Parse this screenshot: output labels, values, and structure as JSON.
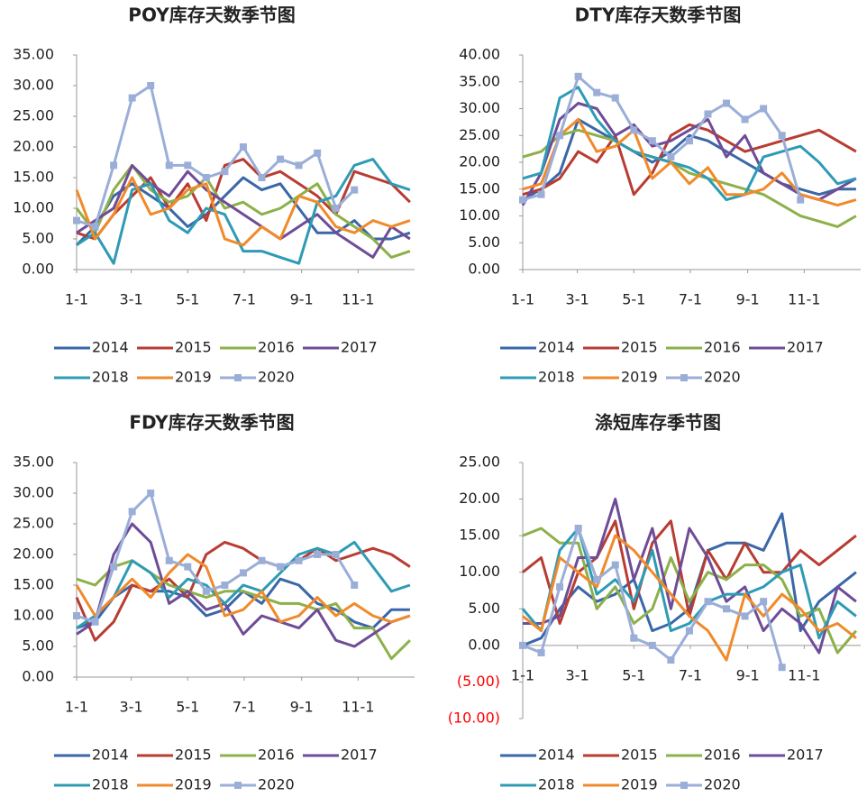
{
  "chart_data": [
    {
      "type": "line",
      "title": "POY库存天数季节图",
      "x": [
        0,
        20,
        40,
        60,
        80,
        100,
        120,
        140,
        160,
        180,
        200,
        220,
        240,
        260,
        280,
        300,
        320,
        340,
        360
      ],
      "xlim": [
        0,
        365
      ],
      "xticks": [
        {
          "value": 0,
          "label": "1-1"
        },
        {
          "value": 59,
          "label": "3-1"
        },
        {
          "value": 120,
          "label": "5-1"
        },
        {
          "value": 181,
          "label": "7-1"
        },
        {
          "value": 243,
          "label": "9-1"
        },
        {
          "value": 304,
          "label": "11-1"
        }
      ],
      "ylim": [
        0,
        35
      ],
      "yticks": [
        {
          "value": 0,
          "label": "0.00"
        },
        {
          "value": 5,
          "label": "5.00"
        },
        {
          "value": 10,
          "label": "10.00"
        },
        {
          "value": 15,
          "label": "15.00"
        },
        {
          "value": 20,
          "label": "20.00"
        },
        {
          "value": 25,
          "label": "25.00"
        },
        {
          "value": 30,
          "label": "30.00"
        },
        {
          "value": 35,
          "label": "35.00"
        }
      ],
      "series": [
        {
          "name": "2014",
          "color": "#3a67a8",
          "values": [
            4,
            7,
            12,
            14,
            12,
            10,
            7,
            9,
            12,
            15,
            13,
            14,
            10,
            6,
            6,
            8,
            5,
            5,
            6
          ]
        },
        {
          "name": "2015",
          "color": "#b83c32",
          "values": [
            6,
            5,
            9,
            12,
            15,
            10,
            14,
            8,
            17,
            18,
            15,
            16,
            14,
            12,
            9,
            16,
            15,
            14,
            11
          ]
        },
        {
          "name": "2016",
          "color": "#8db04a",
          "values": [
            10,
            6,
            13,
            17,
            13,
            11,
            12,
            15,
            10,
            11,
            9,
            10,
            12,
            14,
            9,
            7,
            5,
            2,
            3
          ]
        },
        {
          "name": "2017",
          "color": "#6f4c97",
          "values": [
            6,
            8,
            10,
            17,
            14,
            12,
            16,
            13,
            11,
            9,
            7,
            5,
            7,
            9,
            6,
            4,
            2,
            7,
            5
          ]
        },
        {
          "name": "2018",
          "color": "#2e9bb5",
          "values": [
            4,
            6,
            1,
            13,
            14,
            8,
            6,
            10,
            9,
            3,
            3,
            2,
            1,
            11,
            12,
            17,
            18,
            14,
            13
          ]
        },
        {
          "name": "2019",
          "color": "#f08a2a",
          "values": [
            13,
            5,
            9,
            15,
            9,
            10,
            13,
            14,
            5,
            4,
            7,
            5,
            12,
            11,
            7,
            6,
            8,
            7,
            8
          ]
        },
        {
          "name": "2020",
          "color": "#9aaed8",
          "marker": "square",
          "values": [
            8,
            7,
            17,
            28,
            30,
            17,
            17,
            15,
            16,
            20,
            15,
            18,
            17,
            19,
            10,
            13,
            null,
            null,
            null
          ]
        }
      ]
    },
    {
      "type": "line",
      "title": "DTY库存天数季节图",
      "x": [
        0,
        20,
        40,
        60,
        80,
        100,
        120,
        140,
        160,
        180,
        200,
        220,
        240,
        260,
        280,
        300,
        320,
        340,
        360
      ],
      "xlim": [
        0,
        365
      ],
      "xticks": [
        {
          "value": 0,
          "label": "1-1"
        },
        {
          "value": 59,
          "label": "3-1"
        },
        {
          "value": 120,
          "label": "5-1"
        },
        {
          "value": 181,
          "label": "7-1"
        },
        {
          "value": 243,
          "label": "9-1"
        },
        {
          "value": 304,
          "label": "11-1"
        }
      ],
      "ylim": [
        0,
        40
      ],
      "yticks": [
        {
          "value": 0,
          "label": "0.00"
        },
        {
          "value": 5,
          "label": "5.00"
        },
        {
          "value": 10,
          "label": "10.00"
        },
        {
          "value": 15,
          "label": "15.00"
        },
        {
          "value": 20,
          "label": "20.00"
        },
        {
          "value": 25,
          "label": "25.00"
        },
        {
          "value": 30,
          "label": "30.00"
        },
        {
          "value": 35,
          "label": "35.00"
        },
        {
          "value": 40,
          "label": "40.00"
        }
      ],
      "series": [
        {
          "name": "2014",
          "color": "#3a67a8",
          "values": [
            13,
            15,
            18,
            28,
            26,
            24,
            22,
            20,
            22,
            25,
            24,
            22,
            20,
            18,
            16,
            15,
            14,
            15,
            15
          ]
        },
        {
          "name": "2015",
          "color": "#b83c32",
          "values": [
            14,
            15,
            17,
            22,
            20,
            25,
            14,
            18,
            25,
            27,
            26,
            24,
            22,
            23,
            24,
            25,
            26,
            24,
            22
          ]
        },
        {
          "name": "2016",
          "color": "#8db04a",
          "values": [
            21,
            22,
            25,
            26,
            25,
            24,
            22,
            21,
            20,
            18,
            17,
            16,
            15,
            14,
            12,
            10,
            9,
            8,
            10
          ]
        },
        {
          "name": "2017",
          "color": "#6f4c97",
          "values": [
            12,
            18,
            28,
            31,
            30,
            25,
            27,
            23,
            24,
            26,
            28,
            21,
            25,
            18,
            16,
            14,
            13,
            15,
            17
          ]
        },
        {
          "name": "2018",
          "color": "#2e9bb5",
          "values": [
            17,
            18,
            32,
            34,
            28,
            24,
            22,
            21,
            20,
            19,
            17,
            13,
            14,
            21,
            22,
            23,
            20,
            16,
            17
          ]
        },
        {
          "name": "2019",
          "color": "#f08a2a",
          "values": [
            15,
            16,
            25,
            28,
            22,
            23,
            26,
            17,
            20,
            16,
            19,
            14,
            14,
            15,
            18,
            14,
            13,
            12,
            13
          ]
        },
        {
          "name": "2020",
          "color": "#9aaed8",
          "marker": "square",
          "values": [
            13,
            14,
            25,
            36,
            33,
            32,
            26,
            24,
            21,
            24,
            29,
            31,
            28,
            30,
            25,
            13,
            null,
            null,
            null
          ]
        }
      ]
    },
    {
      "type": "line",
      "title": "FDY库存天数季节图",
      "x": [
        0,
        20,
        40,
        60,
        80,
        100,
        120,
        140,
        160,
        180,
        200,
        220,
        240,
        260,
        280,
        300,
        320,
        340,
        360
      ],
      "xlim": [
        0,
        365
      ],
      "xticks": [
        {
          "value": 0,
          "label": "1-1"
        },
        {
          "value": 59,
          "label": "3-1"
        },
        {
          "value": 120,
          "label": "5-1"
        },
        {
          "value": 181,
          "label": "7-1"
        },
        {
          "value": 243,
          "label": "9-1"
        },
        {
          "value": 304,
          "label": "11-1"
        }
      ],
      "ylim": [
        0,
        35
      ],
      "yticks": [
        {
          "value": 0,
          "label": "0.00"
        },
        {
          "value": 5,
          "label": "5.00"
        },
        {
          "value": 10,
          "label": "10.00"
        },
        {
          "value": 15,
          "label": "15.00"
        },
        {
          "value": 20,
          "label": "20.00"
        },
        {
          "value": 25,
          "label": "25.00"
        },
        {
          "value": 30,
          "label": "30.00"
        },
        {
          "value": 35,
          "label": "35.00"
        }
      ],
      "series": [
        {
          "name": "2014",
          "color": "#3a67a8",
          "values": [
            8,
            9,
            13,
            15,
            14,
            14,
            13,
            10,
            11,
            14,
            12,
            16,
            15,
            12,
            11,
            9,
            8,
            11,
            11
          ]
        },
        {
          "name": "2015",
          "color": "#b83c32",
          "values": [
            13,
            6,
            9,
            15,
            14,
            16,
            13,
            20,
            22,
            21,
            19,
            18,
            19,
            21,
            19,
            20,
            21,
            20,
            18
          ]
        },
        {
          "name": "2016",
          "color": "#8db04a",
          "values": [
            16,
            15,
            18,
            19,
            17,
            15,
            14,
            13,
            14,
            14,
            13,
            12,
            12,
            11,
            12,
            8,
            8,
            3,
            6
          ]
        },
        {
          "name": "2017",
          "color": "#6f4c97",
          "values": [
            7,
            9,
            20,
            25,
            22,
            12,
            14,
            11,
            12,
            7,
            10,
            9,
            8,
            11,
            6,
            5,
            7,
            9,
            10
          ]
        },
        {
          "name": "2018",
          "color": "#2e9bb5",
          "values": [
            8,
            10,
            13,
            19,
            17,
            13,
            16,
            15,
            12,
            15,
            14,
            17,
            20,
            21,
            20,
            22,
            18,
            14,
            15
          ]
        },
        {
          "name": "2019",
          "color": "#f08a2a",
          "values": [
            15,
            10,
            13,
            16,
            13,
            17,
            20,
            18,
            10,
            11,
            14,
            9,
            10,
            13,
            10,
            12,
            10,
            9,
            10
          ]
        },
        {
          "name": "2020",
          "color": "#9aaed8",
          "marker": "square",
          "values": [
            10,
            9,
            18,
            27,
            30,
            19,
            18,
            14,
            15,
            17,
            19,
            18,
            19,
            20,
            20,
            15,
            null,
            null,
            null
          ]
        }
      ]
    },
    {
      "type": "line",
      "title": "涤短库存季节图",
      "x": [
        0,
        20,
        40,
        60,
        80,
        100,
        120,
        140,
        160,
        180,
        200,
        220,
        240,
        260,
        280,
        300,
        320,
        340,
        360
      ],
      "xlim": [
        0,
        365
      ],
      "xticks": [
        {
          "value": 0,
          "label": "1-1"
        },
        {
          "value": 59,
          "label": "3-1"
        },
        {
          "value": 120,
          "label": "5-1"
        },
        {
          "value": 181,
          "label": "7-1"
        },
        {
          "value": 243,
          "label": "9-1"
        },
        {
          "value": 304,
          "label": "11-1"
        }
      ],
      "ylim": [
        -10,
        25
      ],
      "yticks": [
        {
          "value": -10,
          "label": "(10.00)"
        },
        {
          "value": -5,
          "label": "(5.00)"
        },
        {
          "value": 0,
          "label": "0.00"
        },
        {
          "value": 5,
          "label": "5.00"
        },
        {
          "value": 10,
          "label": "10.00"
        },
        {
          "value": 15,
          "label": "15.00"
        },
        {
          "value": 20,
          "label": "20.00"
        },
        {
          "value": 25,
          "label": "25.00"
        }
      ],
      "negative_tick_color": "#ff0000",
      "series": [
        {
          "name": "2014",
          "color": "#3a67a8",
          "values": [
            0,
            1,
            5,
            8,
            6,
            7,
            9,
            2,
            3,
            5,
            13,
            14,
            14,
            13,
            18,
            2,
            6,
            8,
            10
          ]
        },
        {
          "name": "2015",
          "color": "#b83c32",
          "values": [
            10,
            12,
            3,
            10,
            12,
            17,
            5,
            14,
            17,
            4,
            13,
            9,
            14,
            10,
            10,
            13,
            11,
            13,
            15
          ]
        },
        {
          "name": "2016",
          "color": "#8db04a",
          "values": [
            15,
            16,
            14,
            14,
            5,
            8,
            3,
            5,
            12,
            6,
            10,
            9,
            11,
            11,
            9,
            4,
            5,
            -1,
            2
          ]
        },
        {
          "name": "2017",
          "color": "#6f4c97",
          "values": [
            3,
            3,
            4,
            12,
            12,
            20,
            9,
            16,
            5,
            16,
            12,
            6,
            8,
            2,
            5,
            3,
            -1,
            8,
            6
          ]
        },
        {
          "name": "2018",
          "color": "#2e9bb5",
          "values": [
            5,
            2,
            13,
            16,
            7,
            9,
            6,
            13,
            2,
            3,
            6,
            7,
            7,
            8,
            10,
            11,
            1,
            6,
            4
          ]
        },
        {
          "name": "2019",
          "color": "#f08a2a",
          "values": [
            4,
            2,
            12,
            10,
            8,
            15,
            13,
            10,
            7,
            4,
            2,
            -2,
            7,
            4,
            7,
            5,
            2,
            3,
            1
          ]
        },
        {
          "name": "2020",
          "color": "#9aaed8",
          "marker": "square",
          "values": [
            0,
            -1,
            8,
            16,
            9,
            11,
            1,
            0,
            -2,
            2,
            6,
            5,
            4,
            6,
            -3,
            null,
            null,
            null,
            null
          ]
        }
      ]
    }
  ]
}
